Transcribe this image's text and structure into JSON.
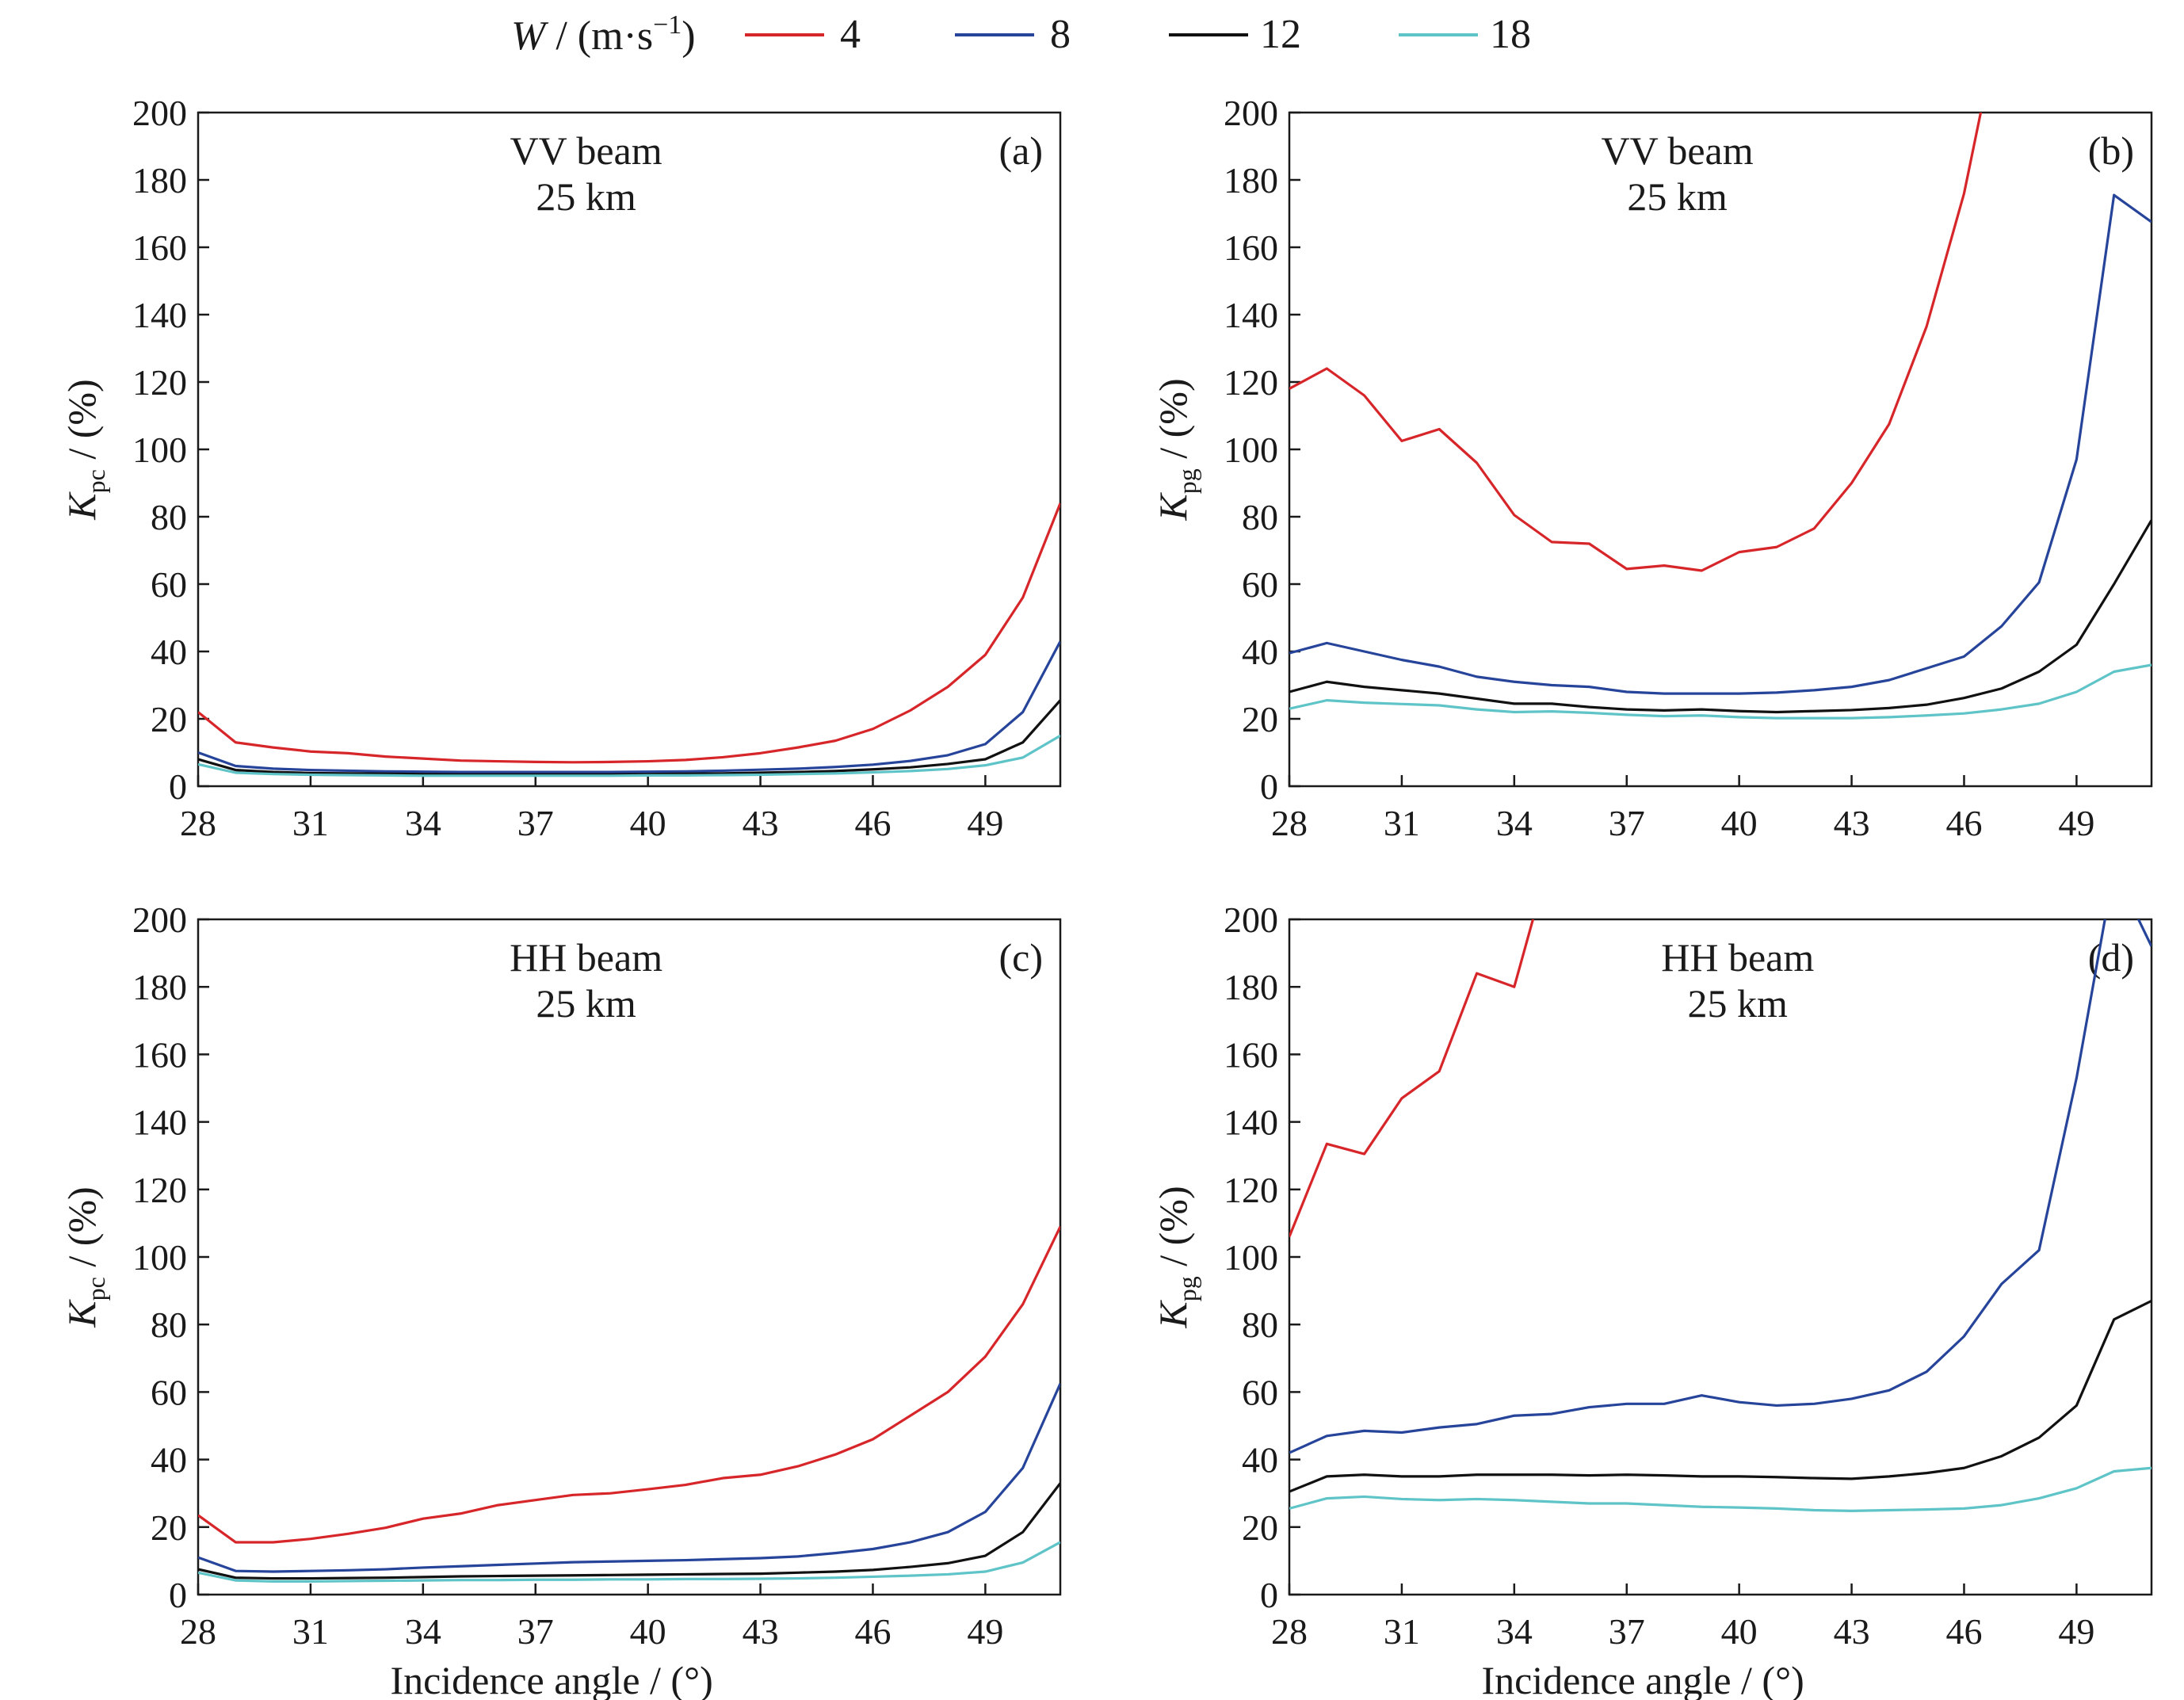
{
  "legend": {
    "variable": "W",
    "unit_open": " / (m·s",
    "unit_exp": "−1",
    "unit_close": ")",
    "entries": [
      "4",
      "8",
      "12",
      "18"
    ]
  },
  "colors": {
    "4": "#d7262a",
    "8": "#26449a",
    "12": "#111111",
    "18": "#5fc4c8"
  },
  "chart_data": [
    {
      "type": "line",
      "panel": "a",
      "tag": "(a)",
      "title_lines": [
        "VV beam",
        "25 km"
      ],
      "ylabel_main": "K",
      "ylabel_sub": "pc",
      "ylabel_unit": " / (%)",
      "xlabel": "",
      "xlim": [
        28,
        51
      ],
      "ylim": [
        0,
        200
      ],
      "xticks": [
        28,
        31,
        34,
        37,
        40,
        43,
        46,
        49
      ],
      "yticks": [
        0,
        20,
        40,
        60,
        80,
        100,
        120,
        140,
        160,
        180,
        200
      ],
      "x": [
        28,
        29,
        30,
        31,
        32,
        33,
        34,
        35,
        36,
        37,
        38,
        39,
        40,
        41,
        42,
        43,
        44,
        45,
        46,
        47,
        48,
        49,
        50,
        51
      ],
      "series": [
        {
          "name": "4",
          "values": [
            22,
            13,
            11.5,
            10.3,
            9.8,
            8.8,
            8.2,
            7.6,
            7.4,
            7.2,
            7.1,
            7.2,
            7.4,
            7.8,
            8.6,
            9.8,
            11.5,
            13.5,
            17,
            22.5,
            29.5,
            39,
            56,
            84
          ]
        },
        {
          "name": "8",
          "values": [
            10,
            6,
            5.2,
            4.8,
            4.6,
            4.4,
            4.3,
            4.2,
            4.2,
            4.2,
            4.2,
            4.2,
            4.3,
            4.4,
            4.6,
            4.9,
            5.2,
            5.7,
            6.4,
            7.5,
            9.2,
            12.5,
            22,
            43
          ]
        },
        {
          "name": "12",
          "values": [
            8,
            4.8,
            4.2,
            3.9,
            3.8,
            3.7,
            3.6,
            3.5,
            3.5,
            3.5,
            3.5,
            3.5,
            3.6,
            3.7,
            3.8,
            4,
            4.2,
            4.5,
            5,
            5.6,
            6.6,
            8,
            13,
            25.5
          ]
        },
        {
          "name": "18",
          "values": [
            6.5,
            4,
            3.6,
            3.4,
            3.3,
            3.2,
            3.1,
            3.1,
            3.1,
            3.1,
            3.1,
            3.1,
            3.2,
            3.2,
            3.3,
            3.4,
            3.6,
            3.8,
            4.1,
            4.5,
            5.1,
            6.2,
            8.5,
            15
          ]
        }
      ]
    },
    {
      "type": "line",
      "panel": "b",
      "tag": "(b)",
      "title_lines": [
        "VV beam",
        "25 km"
      ],
      "ylabel_main": "K",
      "ylabel_sub": "pg",
      "ylabel_unit": " / (%)",
      "xlabel": "",
      "xlim": [
        28,
        51
      ],
      "ylim": [
        0,
        200
      ],
      "xticks": [
        28,
        31,
        34,
        37,
        40,
        43,
        46,
        49
      ],
      "yticks": [
        0,
        20,
        40,
        60,
        80,
        100,
        120,
        140,
        160,
        180,
        200
      ],
      "x": [
        28,
        29,
        30,
        31,
        32,
        33,
        34,
        35,
        36,
        37,
        38,
        39,
        40,
        41,
        42,
        43,
        44,
        45,
        46,
        47
      ],
      "series": [
        {
          "name": "4",
          "values": [
            118,
            124,
            116,
            102.5,
            106,
            96,
            80.5,
            72.5,
            72,
            64.5,
            65.5,
            64,
            69.5,
            71,
            76.5,
            90,
            107.5,
            136.5,
            176,
            230
          ]
        },
        {
          "name": "8",
          "x": [
            28,
            29,
            30,
            31,
            32,
            33,
            34,
            35,
            36,
            37,
            38,
            39,
            40,
            41,
            42,
            43,
            44,
            45,
            46,
            47,
            48,
            49,
            50,
            51
          ],
          "values": [
            39.5,
            42.5,
            40,
            37.5,
            35.5,
            32.5,
            31,
            30,
            29.5,
            28,
            27.5,
            27.5,
            27.5,
            27.8,
            28.5,
            29.5,
            31.5,
            35,
            38.5,
            47.5,
            60.5,
            97,
            175.5,
            167.5
          ]
        },
        {
          "name": "12",
          "x": [
            28,
            29,
            30,
            31,
            32,
            33,
            34,
            35,
            36,
            37,
            38,
            39,
            40,
            41,
            42,
            43,
            44,
            45,
            46,
            47,
            48,
            49,
            50,
            51
          ],
          "values": [
            28,
            31,
            29.5,
            28.5,
            27.5,
            26,
            24.5,
            24.5,
            23.5,
            22.8,
            22.5,
            22.8,
            22.3,
            22,
            22.3,
            22.6,
            23.2,
            24.2,
            26.2,
            29,
            34,
            42,
            60,
            79
          ]
        },
        {
          "name": "18",
          "x": [
            28,
            29,
            30,
            31,
            32,
            33,
            34,
            35,
            36,
            37,
            38,
            39,
            40,
            41,
            42,
            43,
            44,
            45,
            46,
            47,
            48,
            49,
            50,
            51
          ],
          "values": [
            23,
            25.5,
            24.8,
            24.4,
            24,
            22.8,
            22,
            22.2,
            21.8,
            21.2,
            20.8,
            21,
            20.5,
            20.2,
            20.2,
            20.2,
            20.5,
            21,
            21.6,
            22.8,
            24.5,
            28,
            34,
            36
          ]
        }
      ]
    },
    {
      "type": "line",
      "panel": "c",
      "tag": "(c)",
      "title_lines": [
        "HH beam",
        "25 km"
      ],
      "ylabel_main": "K",
      "ylabel_sub": "pc",
      "ylabel_unit": " / (%)",
      "xlabel": "Incidence angle / (°)",
      "xlim": [
        28,
        51
      ],
      "ylim": [
        0,
        200
      ],
      "xticks": [
        28,
        31,
        34,
        37,
        40,
        43,
        46,
        49
      ],
      "yticks": [
        0,
        20,
        40,
        60,
        80,
        100,
        120,
        140,
        160,
        180,
        200
      ],
      "x": [
        28,
        29,
        30,
        31,
        32,
        33,
        34,
        35,
        36,
        37,
        38,
        39,
        40,
        41,
        42,
        43,
        44,
        45,
        46,
        47,
        48,
        49,
        50,
        51
      ],
      "series": [
        {
          "name": "4",
          "values": [
            23.5,
            15.5,
            15.5,
            16.5,
            18,
            19.8,
            22.5,
            24,
            26.5,
            28,
            29.5,
            30,
            31.2,
            32.5,
            34.5,
            35.5,
            38,
            41.5,
            46,
            53,
            60,
            70.5,
            86,
            109
          ]
        },
        {
          "name": "8",
          "values": [
            11,
            7,
            6.8,
            7,
            7.2,
            7.5,
            8,
            8.4,
            8.8,
            9.2,
            9.6,
            9.8,
            10,
            10.2,
            10.5,
            10.8,
            11.3,
            12.3,
            13.5,
            15.5,
            18.5,
            24.5,
            37.5,
            62.5
          ]
        },
        {
          "name": "12",
          "values": [
            7.5,
            5,
            4.8,
            4.8,
            4.9,
            5,
            5.2,
            5.4,
            5.5,
            5.6,
            5.7,
            5.8,
            5.9,
            6,
            6.1,
            6.2,
            6.5,
            6.8,
            7.3,
            8.2,
            9.3,
            11.5,
            18.5,
            33
          ]
        },
        {
          "name": "18",
          "values": [
            6.5,
            4.2,
            3.9,
            3.9,
            4,
            4.1,
            4.2,
            4.3,
            4.3,
            4.4,
            4.4,
            4.5,
            4.5,
            4.6,
            4.6,
            4.7,
            4.8,
            5,
            5.3,
            5.6,
            6,
            6.8,
            9.5,
            15.5
          ]
        }
      ]
    },
    {
      "type": "line",
      "panel": "d",
      "tag": "(d)",
      "title_lines": [
        "HH beam",
        "25 km"
      ],
      "ylabel_main": "K",
      "ylabel_sub": "pg",
      "ylabel_unit": " / (%)",
      "xlabel": "Incidence angle / (°)",
      "xlim": [
        28,
        51
      ],
      "ylim": [
        0,
        200
      ],
      "xticks": [
        28,
        31,
        34,
        37,
        40,
        43,
        46,
        49
      ],
      "yticks": [
        0,
        20,
        40,
        60,
        80,
        100,
        120,
        140,
        160,
        180,
        200
      ],
      "x": [
        28,
        29,
        30,
        31,
        32,
        33,
        34,
        35
      ],
      "series": [
        {
          "name": "4",
          "values": [
            106,
            133.5,
            130.5,
            147,
            155,
            184,
            180,
            220
          ]
        },
        {
          "name": "8",
          "x": [
            28,
            29,
            30,
            31,
            32,
            33,
            34,
            35,
            36,
            37,
            38,
            39,
            40,
            41,
            42,
            43,
            44,
            45,
            46,
            47,
            48,
            49,
            50,
            51
          ],
          "values": [
            42,
            47,
            48.5,
            48,
            49.5,
            50.5,
            53,
            53.5,
            55.5,
            56.5,
            56.5,
            59,
            57,
            56,
            56.5,
            58,
            60.5,
            66,
            76.5,
            92,
            102,
            153,
            215,
            192
          ]
        },
        {
          "name": "12",
          "x": [
            28,
            29,
            30,
            31,
            32,
            33,
            34,
            35,
            36,
            37,
            38,
            39,
            40,
            41,
            42,
            43,
            44,
            45,
            46,
            47,
            48,
            49,
            50,
            51
          ],
          "values": [
            30.5,
            35,
            35.5,
            35,
            35,
            35.5,
            35.5,
            35.5,
            35.3,
            35.5,
            35.3,
            35,
            35,
            34.8,
            34.5,
            34.3,
            35,
            36,
            37.5,
            41,
            46.5,
            56,
            81.5,
            87
          ]
        },
        {
          "name": "18",
          "x": [
            28,
            29,
            30,
            31,
            32,
            33,
            34,
            35,
            36,
            37,
            38,
            39,
            40,
            41,
            42,
            43,
            44,
            45,
            46,
            47,
            48,
            49,
            50,
            51
          ],
          "values": [
            25.5,
            28.5,
            29,
            28.3,
            28,
            28.3,
            28,
            27.5,
            27,
            27,
            26.5,
            26,
            25.8,
            25.5,
            25,
            24.8,
            25,
            25.2,
            25.5,
            26.5,
            28.5,
            31.5,
            36.5,
            37.5
          ]
        }
      ]
    }
  ]
}
